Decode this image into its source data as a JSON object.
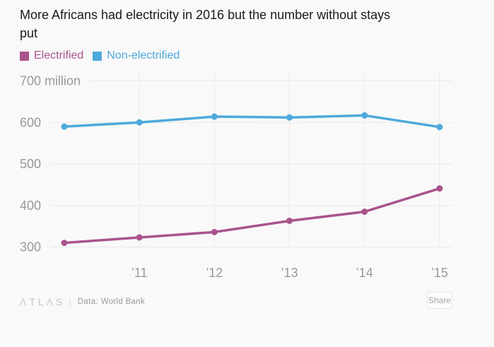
{
  "title": {
    "lines": [
      "More Africans had electricity in 2016 but the number without stays",
      "put"
    ]
  },
  "chart_data": {
    "type": "line",
    "x": [
      "2010",
      "2011",
      "2012",
      "2013",
      "2014",
      "2015"
    ],
    "x_tick_labels": [
      "",
      "’11",
      "’12",
      "’13",
      "’14",
      "’15"
    ],
    "y_ticks": [
      {
        "value": 700,
        "label": "700 million"
      },
      {
        "value": 600,
        "label": "600"
      },
      {
        "value": 500,
        "label": "500"
      },
      {
        "value": 400,
        "label": "400"
      },
      {
        "value": 300,
        "label": "300"
      }
    ],
    "ylim": [
      300,
      700
    ],
    "grid": "both",
    "legend_position": "top",
    "series": [
      {
        "name": "Electrified",
        "color": "#a9548c",
        "values": [
          310,
          323,
          336,
          363,
          385,
          441
        ]
      },
      {
        "name": "Non-electrified",
        "color": "#4da9dc",
        "values": [
          590,
          600,
          614,
          612,
          617,
          589
        ]
      }
    ]
  },
  "colors": {
    "background": "#f9f9f9",
    "grid": "#e9e9e9",
    "tick_label": "#999999",
    "title_text": "#1a1a1a"
  },
  "footer": {
    "logo": "ΛTLΛS",
    "divider": "|",
    "source_label": "Data:",
    "source": "World Bank",
    "share_label": "Share"
  }
}
